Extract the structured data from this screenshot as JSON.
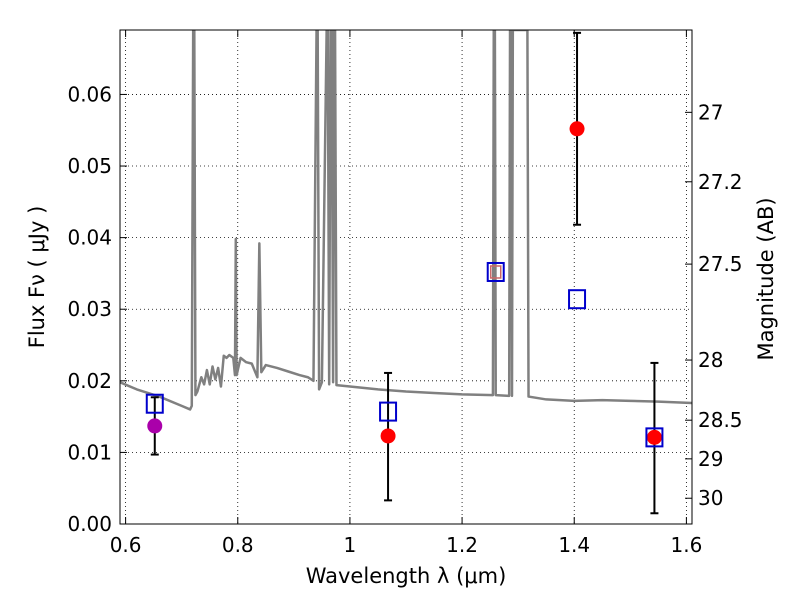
{
  "chart_data": {
    "type": "scatter",
    "xlabel": "Wavelength  λ (μm)",
    "ylabel": "Flux  Fν  ( μJy )",
    "y2label": "Magnitude (AB)",
    "xlim": [
      0.59,
      1.61
    ],
    "ylim": [
      0.0,
      0.069
    ],
    "grid": true,
    "x_ticks": [
      0.6,
      0.8,
      1.0,
      1.2,
      1.4,
      1.6
    ],
    "x_tick_labels": [
      "0.6",
      "0.8",
      "1",
      "1.2",
      "1.4",
      "1.6"
    ],
    "y_ticks": [
      0.0,
      0.01,
      0.02,
      0.03,
      0.04,
      0.05,
      0.06
    ],
    "y_tick_labels": [
      "0.00",
      "0.01",
      "0.02",
      "0.03",
      "0.04",
      "0.05",
      "0.06"
    ],
    "y2_ticks": [
      {
        "label": "27",
        "flux": 0.0575
      },
      {
        "label": "27.2",
        "flux": 0.0478
      },
      {
        "label": "27.5",
        "flux": 0.0363
      },
      {
        "label": "28",
        "flux": 0.0229
      },
      {
        "label": "28.5",
        "flux": 0.0145
      },
      {
        "label": "29",
        "flux": 0.0091
      },
      {
        "label": "30",
        "flux": 0.0036
      }
    ],
    "series": [
      {
        "kind": "line",
        "color": "#808080",
        "points": [
          [
            0.59,
            0.0198
          ],
          [
            0.62,
            0.0188
          ],
          [
            0.66,
            0.0178
          ],
          [
            0.7,
            0.0165
          ],
          [
            0.715,
            0.016
          ],
          [
            0.718,
            0.0165
          ],
          [
            0.7205,
            0.069
          ],
          [
            0.7225,
            0.069
          ],
          [
            0.7245,
            0.018
          ],
          [
            0.728,
            0.0185
          ],
          [
            0.735,
            0.0205
          ],
          [
            0.74,
            0.0195
          ],
          [
            0.745,
            0.0215
          ],
          [
            0.75,
            0.0195
          ],
          [
            0.755,
            0.022
          ],
          [
            0.76,
            0.0202
          ],
          [
            0.765,
            0.0218
          ],
          [
            0.77,
            0.0192
          ],
          [
            0.775,
            0.0235
          ],
          [
            0.78,
            0.0232
          ],
          [
            0.785,
            0.0236
          ],
          [
            0.792,
            0.0232
          ],
          [
            0.795,
            0.0208
          ],
          [
            0.7965,
            0.0398
          ],
          [
            0.798,
            0.0208
          ],
          [
            0.805,
            0.0232
          ],
          [
            0.815,
            0.0226
          ],
          [
            0.825,
            0.0224
          ],
          [
            0.835,
            0.0205
          ],
          [
            0.8385,
            0.0392
          ],
          [
            0.842,
            0.0212
          ],
          [
            0.85,
            0.0222
          ],
          [
            0.87,
            0.0218
          ],
          [
            0.89,
            0.0213
          ],
          [
            0.91,
            0.0208
          ],
          [
            0.925,
            0.0205
          ],
          [
            0.935,
            0.02
          ],
          [
            0.9405,
            0.069
          ],
          [
            0.9425,
            0.069
          ],
          [
            0.945,
            0.0188
          ],
          [
            0.95,
            0.0198
          ],
          [
            0.9585,
            0.069
          ],
          [
            0.9605,
            0.069
          ],
          [
            0.963,
            0.0195
          ],
          [
            0.9655,
            0.069
          ],
          [
            0.9675,
            0.069
          ],
          [
            0.97,
            0.0198
          ],
          [
            0.9715,
            0.069
          ],
          [
            0.9735,
            0.069
          ],
          [
            0.976,
            0.0194
          ],
          [
            1.0,
            0.0192
          ],
          [
            1.05,
            0.0188
          ],
          [
            1.1,
            0.0185
          ],
          [
            1.15,
            0.0183
          ],
          [
            1.2,
            0.0181
          ],
          [
            1.255,
            0.018
          ],
          [
            1.2565,
            0.069
          ],
          [
            1.2585,
            0.069
          ],
          [
            1.26,
            0.018
          ],
          [
            1.284,
            0.0179
          ],
          [
            1.2855,
            0.069
          ],
          [
            1.2875,
            0.069
          ],
          [
            1.289,
            0.0179
          ],
          [
            1.2905,
            0.069
          ],
          [
            1.3165,
            0.069
          ],
          [
            1.3185,
            0.0178
          ],
          [
            1.35,
            0.0174
          ],
          [
            1.4,
            0.0172
          ],
          [
            1.45,
            0.0173
          ],
          [
            1.5,
            0.0172
          ],
          [
            1.55,
            0.0171
          ],
          [
            1.61,
            0.0169
          ]
        ]
      },
      {
        "kind": "errorbar",
        "color": "#000000",
        "points": [
          {
            "x": 0.652,
            "y": 0.0137,
            "ylo": 0.0097,
            "yhi": 0.0177
          },
          {
            "x": 1.068,
            "y": 0.0123,
            "ylo": 0.0033,
            "yhi": 0.0211
          },
          {
            "x": 1.405,
            "y": 0.0552,
            "ylo": 0.0418,
            "yhi": 0.0686
          },
          {
            "x": 1.543,
            "y": 0.0121,
            "ylo": 0.0015,
            "yhi": 0.0225
          }
        ]
      },
      {
        "kind": "marker-circle",
        "color": "#ff0000",
        "points": [
          [
            1.068,
            0.0123
          ],
          [
            1.405,
            0.0552
          ],
          [
            1.543,
            0.0121
          ]
        ]
      },
      {
        "kind": "marker-circle",
        "color": "#aa00aa",
        "points": [
          [
            0.652,
            0.0137
          ]
        ]
      },
      {
        "kind": "marker-square",
        "color": "#0000cc",
        "points": [
          [
            0.652,
            0.0168
          ],
          [
            1.068,
            0.0157
          ],
          [
            1.26,
            0.0352
          ],
          [
            1.405,
            0.0314
          ],
          [
            1.543,
            0.0121
          ]
        ]
      },
      {
        "kind": "marker-square-small",
        "color": "#cc6666",
        "points": [
          [
            1.26,
            0.0352
          ]
        ]
      }
    ]
  }
}
